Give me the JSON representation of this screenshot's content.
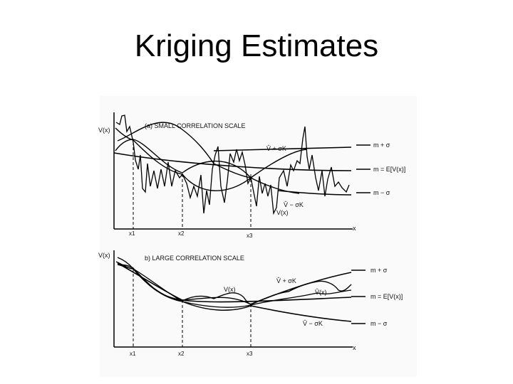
{
  "slide": {
    "title": "Kriging Estimates"
  },
  "panel_a": {
    "ylabel": "V(x)",
    "title": "(a) SMALL CORRELATION SCALE",
    "xlabel": "x",
    "ticks": [
      "x1",
      "x2",
      "x3"
    ],
    "annotations": {
      "upper": "V̂ + σK",
      "lower": "V̂ − σK",
      "vx": "V(x)"
    },
    "legend": [
      "m + σ",
      "m = E[V(x)]",
      "m − σ"
    ]
  },
  "panel_b": {
    "ylabel": "V(x)",
    "title": "b) LARGE CORRELATION SCALE",
    "xlabel": "x",
    "ticks": [
      "x1",
      "x2",
      "x3"
    ],
    "annotations": {
      "upper": "V̂ + σK",
      "lower": "V̂ − σK",
      "vx": "V(x)",
      "vhat": "V̂(x)"
    },
    "legend": [
      "m + σ",
      "m = E[V(x)]",
      "m − σ"
    ]
  }
}
